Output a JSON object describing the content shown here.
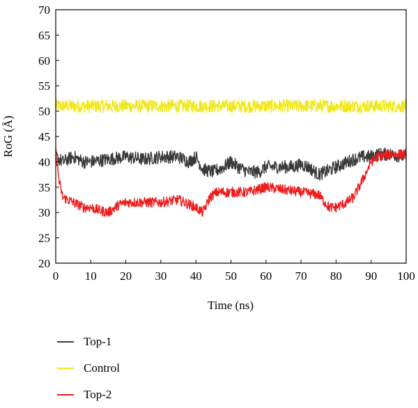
{
  "chart_data": {
    "type": "line",
    "xlabel": "Time (ns)",
    "ylabel": "RoG (Å)",
    "xlim": [
      0,
      100
    ],
    "ylim": [
      20,
      70
    ],
    "x_ticks": [
      0,
      10,
      20,
      30,
      40,
      50,
      60,
      70,
      80,
      90,
      100
    ],
    "y_ticks": [
      20,
      25,
      30,
      35,
      40,
      45,
      50,
      55,
      60,
      65,
      70
    ],
    "grid": false,
    "legend_position": "bottom-left",
    "series": [
      {
        "name": "Top-1",
        "color": "#3a3a3a",
        "noise": 1.3,
        "x": [
          0,
          2,
          5,
          8,
          10,
          15,
          20,
          25,
          30,
          35,
          38,
          40,
          42,
          45,
          48,
          50,
          52,
          55,
          58,
          60,
          65,
          68,
          70,
          72,
          75,
          77,
          80,
          85,
          88,
          90,
          92,
          95,
          100
        ],
        "values": [
          41,
          40,
          41,
          40,
          40,
          40.5,
          41,
          40.5,
          41,
          41,
          40,
          41,
          38.5,
          38,
          39,
          40,
          39,
          38,
          38,
          39,
          39,
          39,
          39.5,
          39,
          37.5,
          38,
          39,
          40.5,
          41,
          41,
          41.5,
          41.5,
          41
        ]
      },
      {
        "name": "Control",
        "color": "#f0e81c",
        "noise": 1.3,
        "x": [
          0,
          10,
          20,
          30,
          40,
          50,
          60,
          70,
          80,
          90,
          100
        ],
        "values": [
          51,
          51,
          51,
          51,
          51,
          51,
          51,
          51,
          51,
          51,
          51
        ]
      },
      {
        "name": "Top-2",
        "color": "#ee1c1c",
        "noise": 1.0,
        "x": [
          0,
          1,
          2,
          5,
          8,
          10,
          12,
          15,
          18,
          20,
          25,
          30,
          35,
          40,
          42,
          44,
          46,
          50,
          55,
          60,
          65,
          70,
          75,
          78,
          80,
          83,
          85,
          88,
          90,
          92,
          95,
          100
        ],
        "values": [
          42,
          36,
          33,
          32,
          31,
          31,
          30.5,
          30,
          31.5,
          32,
          32,
          32,
          32.5,
          31,
          30,
          33,
          34,
          34,
          34,
          35,
          34.5,
          34,
          33.5,
          31,
          31,
          32,
          33,
          37,
          40,
          41,
          41.5,
          41.5
        ]
      }
    ]
  }
}
